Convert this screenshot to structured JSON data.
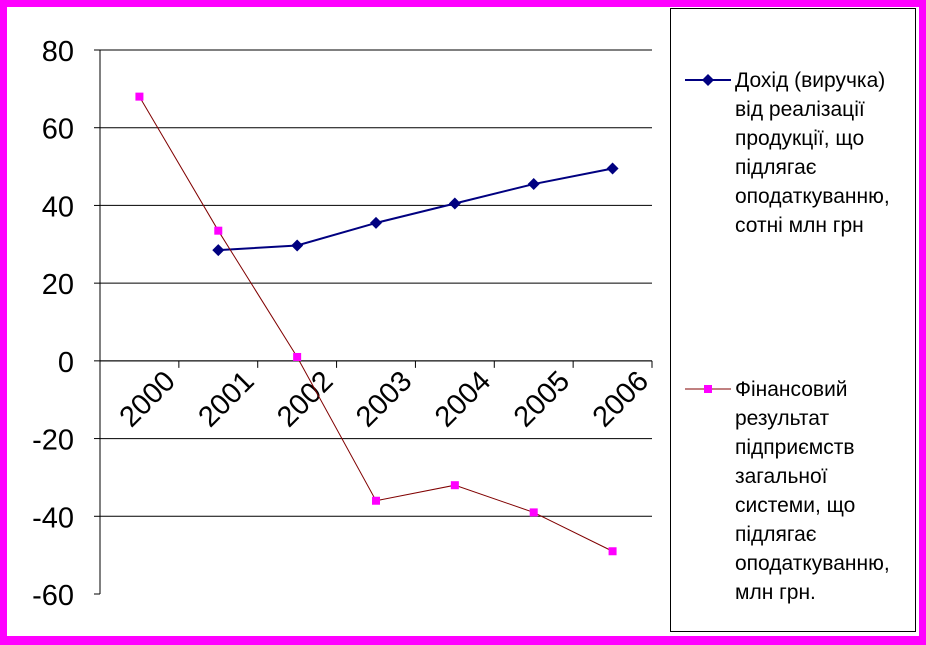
{
  "chart_data": {
    "type": "line",
    "title": "",
    "xlabel": "",
    "ylabel": "",
    "categories": [
      "2000",
      "2001",
      "2002",
      "2003",
      "2004",
      "2005",
      "2006"
    ],
    "ylim": [
      -60,
      80
    ],
    "yticks": [
      80,
      60,
      40,
      20,
      0,
      -20,
      -40,
      -60
    ],
    "grid": true,
    "legend": "right",
    "series": [
      {
        "name": "Дохід (виручка) від реалізації продукції, що підлягає оподаткуванню, сотні млн грн",
        "color": "#000080",
        "marker": "diamond",
        "values": [
          null,
          28.5,
          29.7,
          35.5,
          40.5,
          45.5,
          49.5
        ]
      },
      {
        "name": "Фінансовий результат підприємств загальної системи, що підлягає оподаткуванню, млн грн.",
        "color": "#ff00ff",
        "marker": "square",
        "values": [
          68,
          33.5,
          1,
          -36,
          -32,
          -39,
          -49
        ]
      }
    ]
  }
}
